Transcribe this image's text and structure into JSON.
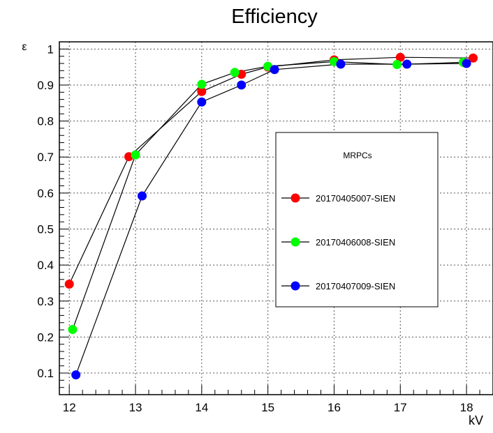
{
  "chart_data": {
    "type": "line",
    "title": "Efficiency",
    "xlabel": "kV",
    "ylabel": "ε",
    "xlim": [
      11.85,
      18.4
    ],
    "ylim": [
      0.04,
      1.02
    ],
    "x_ticks": [
      12,
      13,
      14,
      15,
      16,
      17,
      18
    ],
    "y_ticks": [
      0.1,
      0.2,
      0.3,
      0.4,
      0.5,
      0.6,
      0.7,
      0.8,
      0.9,
      1
    ],
    "grid": true,
    "legend": {
      "title": "MRPCs",
      "placement": "center-right"
    },
    "series": [
      {
        "name": "20170405007-SIEN",
        "color": "#ff0000",
        "x": [
          12.0,
          12.9,
          14.0,
          14.6,
          15.0,
          16.0,
          17.0,
          18.1
        ],
        "y": [
          0.347,
          0.701,
          0.882,
          0.93,
          0.95,
          0.97,
          0.977,
          0.975
        ]
      },
      {
        "name": "20170406008-SIEN",
        "color": "#00ff00",
        "x": [
          12.05,
          13.0,
          14.0,
          14.5,
          15.0,
          16.0,
          16.95,
          17.95
        ],
        "y": [
          0.221,
          0.706,
          0.902,
          0.935,
          0.952,
          0.965,
          0.957,
          0.963
        ]
      },
      {
        "name": "20170407009-SIEN",
        "color": "#0000ff",
        "x": [
          12.1,
          13.1,
          14.0,
          14.6,
          15.1,
          16.1,
          17.1,
          18.0
        ],
        "y": [
          0.095,
          0.592,
          0.853,
          0.9,
          0.943,
          0.958,
          0.958,
          0.96
        ]
      }
    ]
  }
}
